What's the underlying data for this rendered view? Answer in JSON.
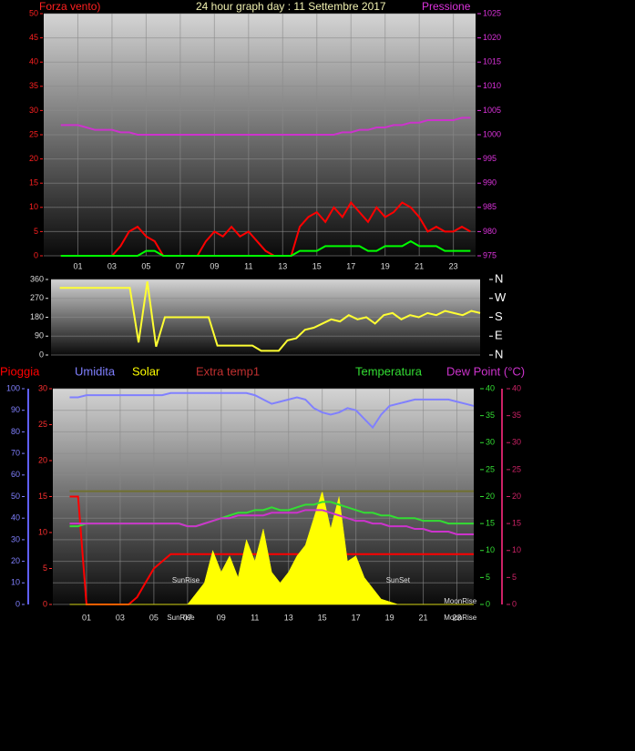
{
  "chart_data": [
    {
      "type": "line",
      "title": "24 hour graph day : 11 Settembre 2017",
      "ylabel": "Forza vento)",
      "y2label": "Pressione",
      "xlim": [
        -1,
        24.3
      ],
      "ylim": [
        0,
        50
      ],
      "yticks": [
        0,
        5,
        10,
        15,
        20,
        25,
        30,
        35,
        40,
        45,
        50
      ],
      "y2lim": [
        975,
        1025
      ],
      "y2ticks": [
        975,
        980,
        985,
        990,
        995,
        1000,
        1005,
        1010,
        1015,
        1020,
        1025
      ],
      "xticks": [
        {
          "value": 1,
          "label": "01"
        },
        {
          "value": 3,
          "label": "03"
        },
        {
          "value": 5,
          "label": "05"
        },
        {
          "value": 7,
          "label": "07"
        },
        {
          "value": 9,
          "label": "09"
        },
        {
          "value": 11,
          "label": "11"
        },
        {
          "value": 13,
          "label": "13"
        },
        {
          "value": 15,
          "label": "15"
        },
        {
          "value": 17,
          "label": "17"
        },
        {
          "value": 19,
          "label": "19"
        },
        {
          "value": 21,
          "label": "21"
        },
        {
          "value": 23,
          "label": "23"
        }
      ],
      "grid": true,
      "x": [
        0,
        0.5,
        1,
        1.5,
        2,
        2.5,
        3,
        3.5,
        4,
        4.5,
        5,
        5.5,
        6,
        6.5,
        7,
        7.5,
        8,
        8.5,
        9,
        9.5,
        10,
        10.5,
        11,
        11.5,
        12,
        12.5,
        13,
        13.5,
        14,
        14.5,
        15,
        15.5,
        16,
        16.5,
        17,
        17.5,
        18,
        18.5,
        19,
        19.5,
        20,
        20.5,
        21,
        21.5,
        22,
        22.5,
        23,
        23.5,
        24
      ],
      "series": [
        {
          "color": "#ff0000",
          "values": [
            0,
            0,
            0,
            0,
            0,
            0,
            0,
            2,
            5,
            6,
            4,
            3,
            0,
            0,
            0,
            0,
            0,
            3,
            5,
            4,
            6,
            4,
            5,
            3,
            1,
            0,
            0,
            0,
            6,
            8,
            9,
            7,
            10,
            8,
            11,
            9,
            7,
            10,
            8,
            9,
            11,
            10,
            8,
            5,
            6,
            5,
            5,
            6,
            5
          ]
        },
        {
          "color": "#00ff00",
          "values": [
            0,
            0,
            0,
            0,
            0,
            0,
            0,
            0,
            0,
            0,
            1,
            1,
            0,
            0,
            0,
            0,
            0,
            0,
            0,
            0,
            0,
            0,
            0,
            0,
            0,
            0,
            0,
            0,
            1,
            1,
            1,
            2,
            2,
            2,
            2,
            2,
            1,
            1,
            2,
            2,
            2,
            3,
            2,
            2,
            2,
            1,
            1,
            1,
            1
          ]
        },
        {
          "color": "#cc33cc",
          "axis": "y2",
          "values": [
            1002,
            1002,
            1002,
            1001.5,
            1001,
            1001,
            1001,
            1000.5,
            1000.5,
            1000,
            1000,
            1000,
            1000,
            1000,
            1000,
            1000,
            1000,
            1000,
            1000,
            1000,
            1000,
            1000,
            1000,
            1000,
            1000,
            1000,
            1000,
            1000,
            1000,
            1000,
            1000,
            1000,
            1000,
            1000.5,
            1000.5,
            1001,
            1001,
            1001.5,
            1001.5,
            1002,
            1002,
            1002.5,
            1002.5,
            1003,
            1003,
            1003,
            1003,
            1003.5,
            1003.5
          ]
        }
      ]
    },
    {
      "type": "line",
      "xlim": [
        -0.5,
        24
      ],
      "ylim": [
        0,
        360
      ],
      "yticks": [
        0,
        90,
        180,
        270,
        360
      ],
      "y2lim": [
        0,
        360
      ],
      "y2ticks": [
        {
          "value": 360,
          "label": "N"
        },
        {
          "value": 270,
          "label": "W"
        },
        {
          "value": 180,
          "label": "S"
        },
        {
          "value": 90,
          "label": "E"
        },
        {
          "value": 0,
          "label": "N"
        }
      ],
      "grid": true,
      "x": [
        0,
        0.5,
        1,
        1.5,
        2,
        2.5,
        3,
        3.5,
        4,
        4.5,
        5,
        5.5,
        6,
        6.5,
        7,
        7.5,
        8,
        8.5,
        9,
        9.5,
        10,
        10.5,
        11,
        11.5,
        12,
        12.5,
        13,
        13.5,
        14,
        14.5,
        15,
        15.5,
        16,
        16.5,
        17,
        17.5,
        18,
        18.5,
        19,
        19.5,
        20,
        20.5,
        21,
        21.5,
        22,
        22.5,
        23,
        23.5,
        24
      ],
      "series": [
        {
          "color": "#ffff33",
          "values": [
            320,
            320,
            320,
            320,
            320,
            320,
            320,
            320,
            320,
            60,
            350,
            40,
            180,
            180,
            180,
            180,
            180,
            180,
            45,
            45,
            45,
            45,
            45,
            20,
            20,
            20,
            70,
            80,
            120,
            130,
            150,
            170,
            160,
            190,
            170,
            180,
            150,
            190,
            200,
            170,
            190,
            180,
            200,
            190,
            210,
            200,
            190,
            210,
            200
          ]
        }
      ]
    },
    {
      "type": "line",
      "xlim": [
        -1,
        24
      ],
      "ylim": [
        0,
        100
      ],
      "yticks": [
        0,
        10,
        20,
        30,
        40,
        50,
        60,
        70,
        80,
        90,
        100
      ],
      "y3lim": [
        0,
        30
      ],
      "y3ticks": [
        0,
        5,
        10,
        15,
        20,
        25,
        30
      ],
      "y2lim": [
        0,
        40
      ],
      "y2ticks": [
        0,
        5,
        10,
        15,
        20,
        25,
        30,
        35,
        40
      ],
      "y4lim": [
        0,
        40
      ],
      "y4ticks": [
        0,
        5,
        10,
        15,
        20,
        25,
        30,
        35,
        40
      ],
      "xticks": [
        {
          "value": 1,
          "label": "01"
        },
        {
          "value": 3,
          "label": "03"
        },
        {
          "value": 5,
          "label": "05"
        },
        {
          "value": 7,
          "label": "07"
        },
        {
          "value": 9,
          "label": "09"
        },
        {
          "value": 11,
          "label": "11"
        },
        {
          "value": 13,
          "label": "13"
        },
        {
          "value": 15,
          "label": "15"
        },
        {
          "value": 17,
          "label": "17"
        },
        {
          "value": 19,
          "label": "19"
        },
        {
          "value": 21,
          "label": "21"
        },
        {
          "value": 23,
          "label": "23"
        }
      ],
      "grid": true,
      "annotations": [
        {
          "text": "SunRise",
          "x": 6.9
        },
        {
          "text": "SunSet",
          "x": 19.5
        },
        {
          "text": "MoonRise",
          "x": 23.2
        }
      ],
      "markers": [
        {
          "text": "SunRise",
          "x": 6.6
        },
        {
          "text": "MoonRise",
          "x": 23.2
        }
      ],
      "x": [
        0,
        0.5,
        1,
        1.5,
        2,
        2.5,
        3,
        3.5,
        4,
        4.5,
        5,
        5.5,
        6,
        6.5,
        7,
        7.5,
        8,
        8.5,
        9,
        9.5,
        10,
        10.5,
        11,
        11.5,
        12,
        12.5,
        13,
        13.5,
        14,
        14.5,
        15,
        15.5,
        16,
        16.5,
        17,
        17.5,
        18,
        18.5,
        19,
        19.5,
        20,
        20.5,
        21,
        21.5,
        22,
        22.5,
        23,
        23.5,
        24
      ],
      "series": [
        {
          "name": "Pioggia",
          "color": "#ff0000",
          "axis": "y3",
          "values": [
            15,
            15,
            0,
            0,
            0,
            0,
            0,
            0,
            1,
            3,
            5,
            6,
            7,
            7,
            7,
            7,
            7,
            7,
            7,
            7,
            7,
            7,
            7,
            7,
            7,
            7,
            7,
            7,
            7,
            7,
            7,
            7,
            7,
            7,
            7,
            7,
            7,
            7,
            7,
            7,
            7,
            7,
            7,
            7,
            7,
            7,
            7,
            7,
            7
          ]
        },
        {
          "name": "Umidita",
          "color": "#8080ff",
          "axis": "y",
          "values": [
            96,
            96,
            97,
            97,
            97,
            97,
            97,
            97,
            97,
            97,
            97,
            97,
            98,
            98,
            98,
            98,
            98,
            98,
            98,
            98,
            98,
            98,
            97,
            95,
            93,
            94,
            95,
            96,
            95,
            91,
            89,
            88,
            89,
            91,
            90,
            86,
            82,
            88,
            92,
            93,
            94,
            95,
            95,
            95,
            95,
            95,
            94,
            93,
            92
          ]
        },
        {
          "name": "Solar",
          "color": "#ffff00",
          "axis": "y2",
          "area": true,
          "values": [
            0,
            0,
            0,
            0,
            0,
            0,
            0,
            0,
            0,
            0,
            0,
            0,
            0,
            0,
            0,
            2,
            4,
            10,
            6,
            9,
            5,
            12,
            8,
            14,
            6,
            4,
            6,
            9,
            11,
            16,
            21,
            14,
            20,
            8,
            9,
            5,
            3,
            1,
            0.5,
            0,
            0,
            0,
            0,
            0,
            0,
            0,
            0,
            0,
            0
          ]
        },
        {
          "name": "Extra temp1",
          "color": "#c03030",
          "axis": "y2",
          "line_color": "#707030",
          "values": [
            21,
            21,
            21,
            21,
            21,
            21,
            21,
            21,
            21,
            21,
            21,
            21,
            21,
            21,
            21,
            21,
            21,
            21,
            21,
            21,
            21,
            21,
            21,
            21,
            21,
            21,
            21,
            21,
            21,
            21,
            21,
            21,
            21,
            21,
            21,
            21,
            21,
            21,
            21,
            21,
            21,
            21,
            21,
            21,
            21,
            21,
            21,
            21,
            21
          ]
        },
        {
          "name": "Temperatura",
          "color": "#33dd33",
          "axis": "y2",
          "values": [
            14.5,
            14.5,
            15,
            15,
            15,
            15,
            15,
            15,
            15,
            15,
            15,
            15,
            15,
            15,
            14.5,
            14.5,
            15,
            15.5,
            16,
            16.5,
            17,
            17,
            17.5,
            17.5,
            18,
            17.5,
            17.5,
            18,
            18.5,
            18.5,
            19,
            19,
            18.5,
            18,
            17.5,
            17,
            17,
            16.5,
            16.5,
            16,
            16,
            16,
            15.5,
            15.5,
            15.5,
            15,
            15,
            15,
            15
          ]
        },
        {
          "name": "Dew Point (°C)",
          "color": "#cc33cc",
          "axis": "y4",
          "values": [
            15,
            15,
            15,
            15,
            15,
            15,
            15,
            15,
            15,
            15,
            15,
            15,
            15,
            15,
            14.5,
            14.5,
            15,
            15.5,
            16,
            16,
            16.5,
            16.5,
            16.5,
            16.5,
            17,
            17,
            17,
            17,
            17.5,
            17.5,
            17.5,
            17,
            16.5,
            16,
            15.5,
            15.5,
            15,
            15,
            14.5,
            14.5,
            14.5,
            14,
            14,
            13.5,
            13.5,
            13.5,
            13,
            13,
            13
          ]
        }
      ]
    }
  ]
}
